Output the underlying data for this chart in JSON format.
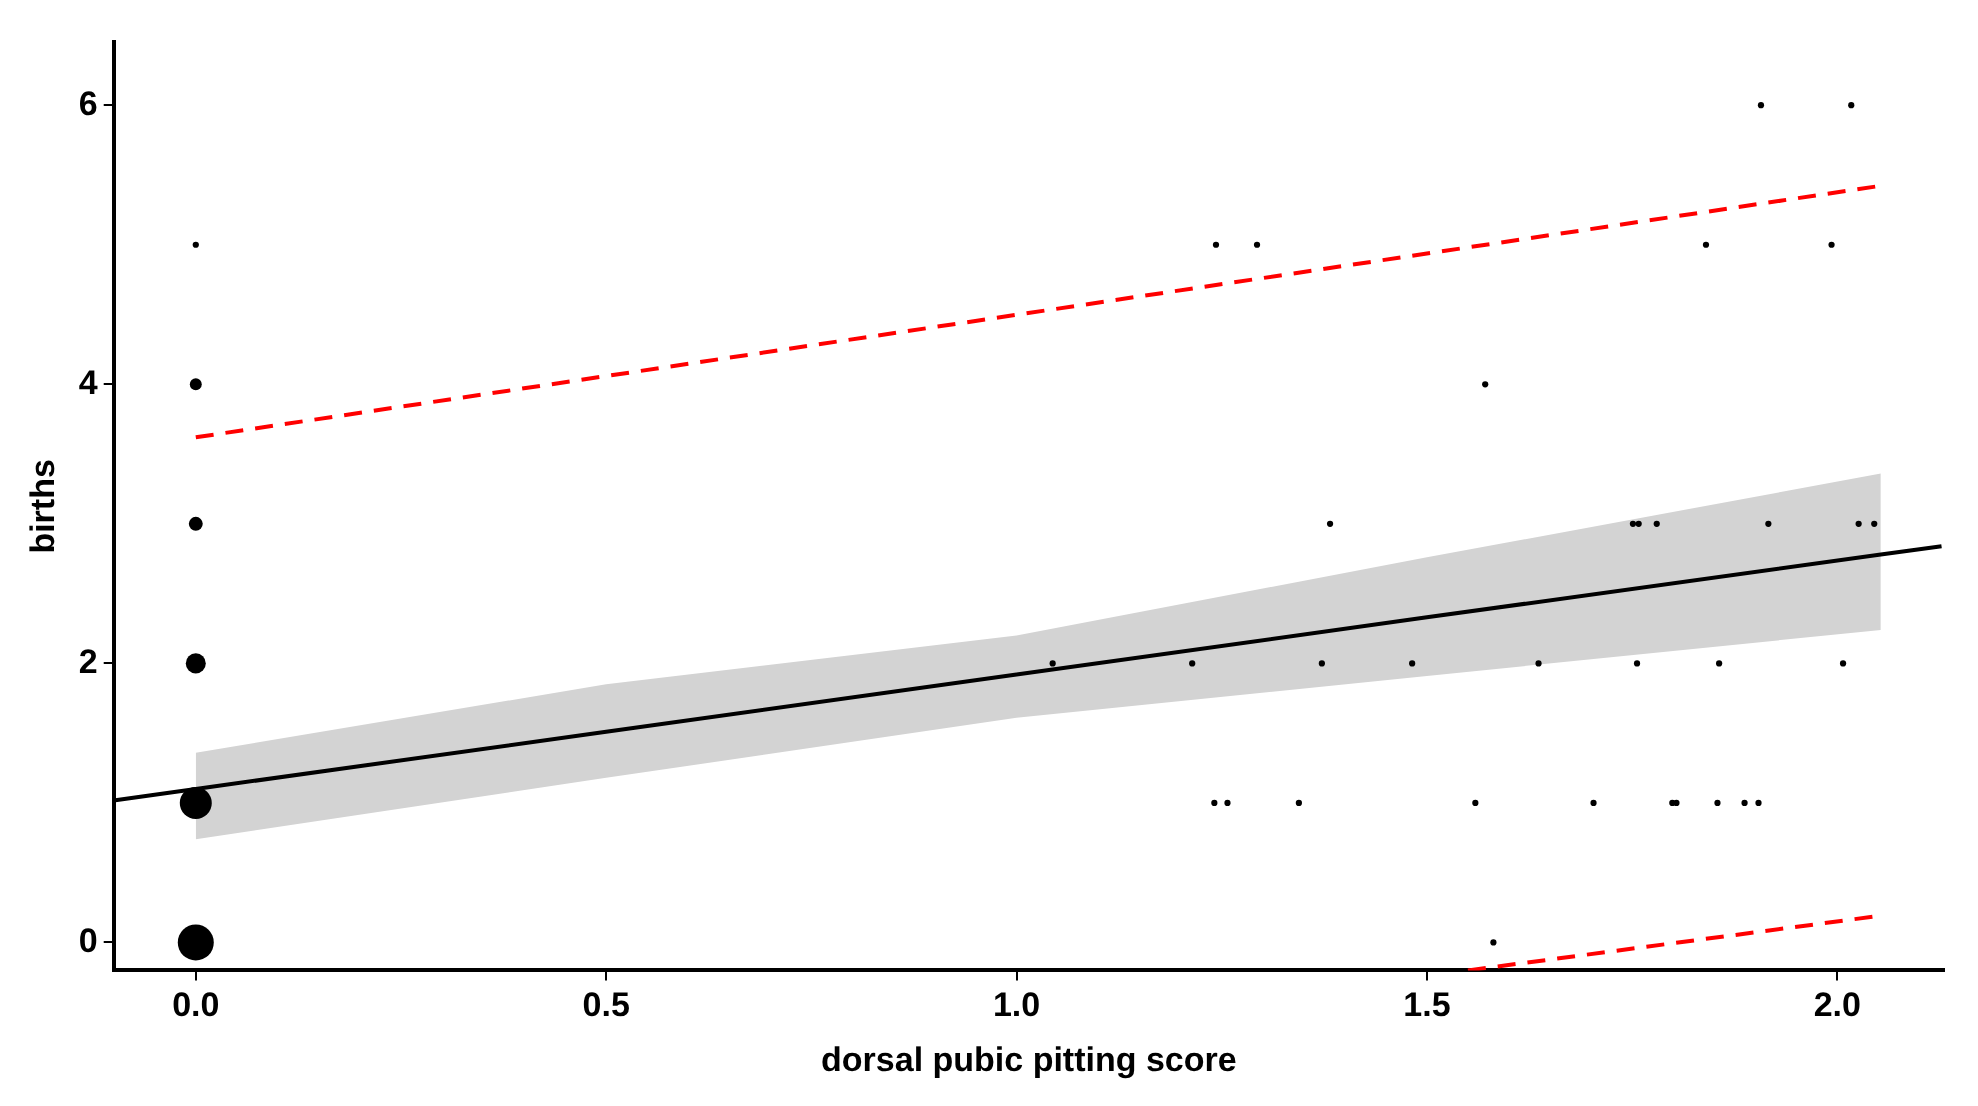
{
  "chart_data": {
    "type": "bubble",
    "xlabel": "dorsal pubic pitting score",
    "ylabel": "births",
    "xlim": [
      -0.1,
      2.13
    ],
    "ylim": [
      -0.2,
      6.45
    ],
    "xticks": [
      {
        "value": 0,
        "label": "0.0"
      },
      {
        "value": 0.5,
        "label": "0.5"
      },
      {
        "value": 1,
        "label": "1.0"
      },
      {
        "value": 1.5,
        "label": "1.5"
      },
      {
        "value": 2,
        "label": "2.0"
      }
    ],
    "yticks": [
      0,
      2,
      4,
      6
    ],
    "series": [
      {
        "type": "line",
        "color": "#000000",
        "marker": "none",
        "line_style": "solid",
        "x": [
          -0.098,
          0,
          0.5,
          1.0,
          1.5,
          2.053,
          2.127
        ],
        "values": [
          1.02,
          1.1,
          1.51,
          1.92,
          2.33,
          2.78,
          2.84
        ],
        "lower": [
          null,
          0.74,
          1.18,
          1.61,
          1.91,
          2.24,
          null
        ],
        "upper": [
          null,
          1.36,
          1.85,
          2.2,
          2.76,
          3.36,
          null
        ]
      },
      {
        "type": "line",
        "color": "#ff0000",
        "marker": "none",
        "line_style": "dashed",
        "x": [
          0,
          2.05
        ],
        "values": [
          3.62,
          5.42
        ]
      },
      {
        "type": "line",
        "color": "#ff0000",
        "marker": "none",
        "line_style": "dashed",
        "x": [
          1.55,
          2.05
        ],
        "values": [
          -0.2,
          0.19
        ]
      },
      {
        "color": "#000000",
        "marker": "circle",
        "x": [
          0,
          0,
          0,
          0,
          0,
          0,
          1.907,
          2.017,
          1.243,
          1.293,
          1.84,
          1.993,
          1.571,
          1.382,
          1.751,
          1.758,
          1.78,
          1.916,
          2.026,
          2.045,
          1.044,
          1.214,
          1.372,
          1.482,
          1.636,
          1.756,
          1.856,
          2.007,
          1.241,
          1.257,
          1.344,
          1.559,
          1.703,
          1.799,
          1.804,
          1.854,
          1.887,
          1.904,
          1.581
        ],
        "values": [
          0,
          1,
          2,
          3,
          4,
          5,
          6,
          6,
          5,
          5,
          5,
          5,
          4,
          3,
          3,
          3,
          3,
          3,
          3,
          3,
          2,
          2,
          2,
          2,
          2,
          2,
          2,
          2,
          1,
          1,
          1,
          1,
          1,
          1,
          1,
          1,
          1,
          1,
          0
        ],
        "sizes": [
          1,
          0.79,
          0.31,
          0.15,
          0.11,
          0.03,
          0.03,
          0.03,
          0.03,
          0.03,
          0.03,
          0.03,
          0.03,
          0.03,
          0.03,
          0.03,
          0.03,
          0.03,
          0.03,
          0.03,
          0.03,
          0.03,
          0.03,
          0.03,
          0.03,
          0.03,
          0.03,
          0.03,
          0.03,
          0.03,
          0.03,
          0.03,
          0.03,
          0.03,
          0.03,
          0.03,
          0.03,
          0.03,
          0.03
        ]
      }
    ]
  }
}
